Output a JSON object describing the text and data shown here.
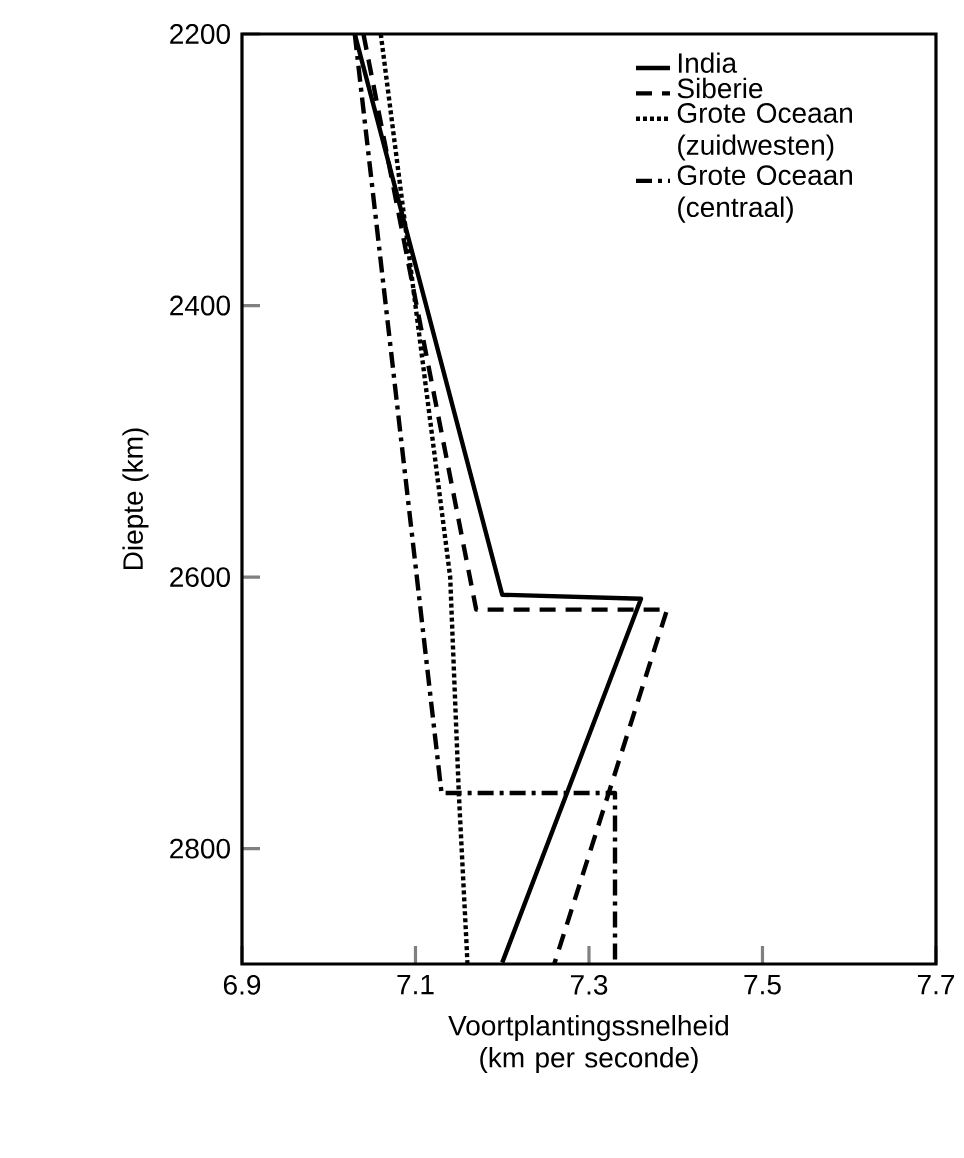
{
  "chart_data": {
    "type": "line",
    "xlabel": "Voortplantingssnelheid (km per seconde)",
    "ylabel": "Diepte (km)",
    "xlim": [
      6.9,
      7.7
    ],
    "ylim": [
      2885,
      2200
    ],
    "xticks": [
      6.9,
      7.1,
      7.3,
      7.5,
      7.7
    ],
    "yticks": [
      2200,
      2400,
      2600,
      2800
    ],
    "grid": false,
    "legend": "top right",
    "marker": "none",
    "series": [
      {
        "name": "India",
        "color": "#000000",
        "line_style": "solid",
        "x": [
          7.03,
          7.2,
          7.36,
          7.2
        ],
        "values": [
          2200,
          2613,
          2616,
          2884
        ]
      },
      {
        "name": "Siberie",
        "color": "#000000",
        "line_style": "dashed",
        "x": [
          7.04,
          7.17,
          7.39,
          7.26
        ],
        "values": [
          2200,
          2624,
          2624,
          2885
        ]
      },
      {
        "name": "Grote Oceaan (zuidwesten)",
        "color": "#000000",
        "line_style": "dotted",
        "x": [
          7.06,
          7.14,
          7.15,
          7.16
        ],
        "values": [
          2200,
          2600,
          2760,
          2885
        ]
      },
      {
        "name": "Grote Oceaan (centraal)",
        "color": "#000000",
        "line_style": "dashdotted",
        "x": [
          7.03,
          7.13,
          7.33,
          7.33
        ],
        "values": [
          2200,
          2759,
          2759,
          2885
        ]
      }
    ]
  }
}
